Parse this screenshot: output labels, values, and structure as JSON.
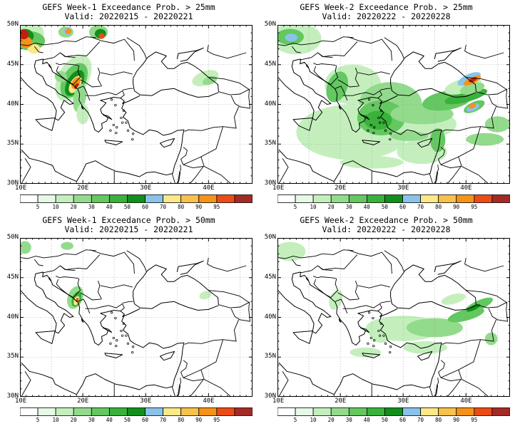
{
  "colors": {
    "coast": "#000000",
    "grid": "#999999",
    "c5": "#e6f8e6",
    "c10": "#c4efbd",
    "c20": "#93db8c",
    "c30": "#62c85f",
    "c40": "#38b23a",
    "c50": "#118f1c",
    "c60": "#8ac3ea",
    "c70": "#fbe886",
    "c80": "#f8c14c",
    "c90": "#f59218",
    "c95": "#ec4b16",
    "c100": "#c01f10",
    "cmax": "#a42a26"
  },
  "colorbar": {
    "labels": [
      "5",
      "10",
      "20",
      "30",
      "40",
      "50",
      "60",
      "70",
      "80",
      "90",
      "95"
    ]
  },
  "axes": {
    "lat_labels": [
      "50N",
      "45N",
      "40N",
      "35N",
      "30N"
    ],
    "lon_labels": [
      "10E",
      "20E",
      "30E",
      "40E"
    ]
  },
  "panels": [
    {
      "title": "GEFS Week-1 Exceedance Prob. > 25mm",
      "valid": "Valid: 20220215 - 20220221"
    },
    {
      "title": "GEFS Week-2 Exceedance Prob. > 25mm",
      "valid": "Valid: 20220222 - 20220228"
    },
    {
      "title": "GEFS Week-1 Exceedance Prob. > 50mm",
      "valid": "Valid: 20220215 - 20220221"
    },
    {
      "title": "GEFS Week-2 Exceedance Prob. > 50mm",
      "valid": "Valid: 20220222 - 20220228"
    }
  ]
}
